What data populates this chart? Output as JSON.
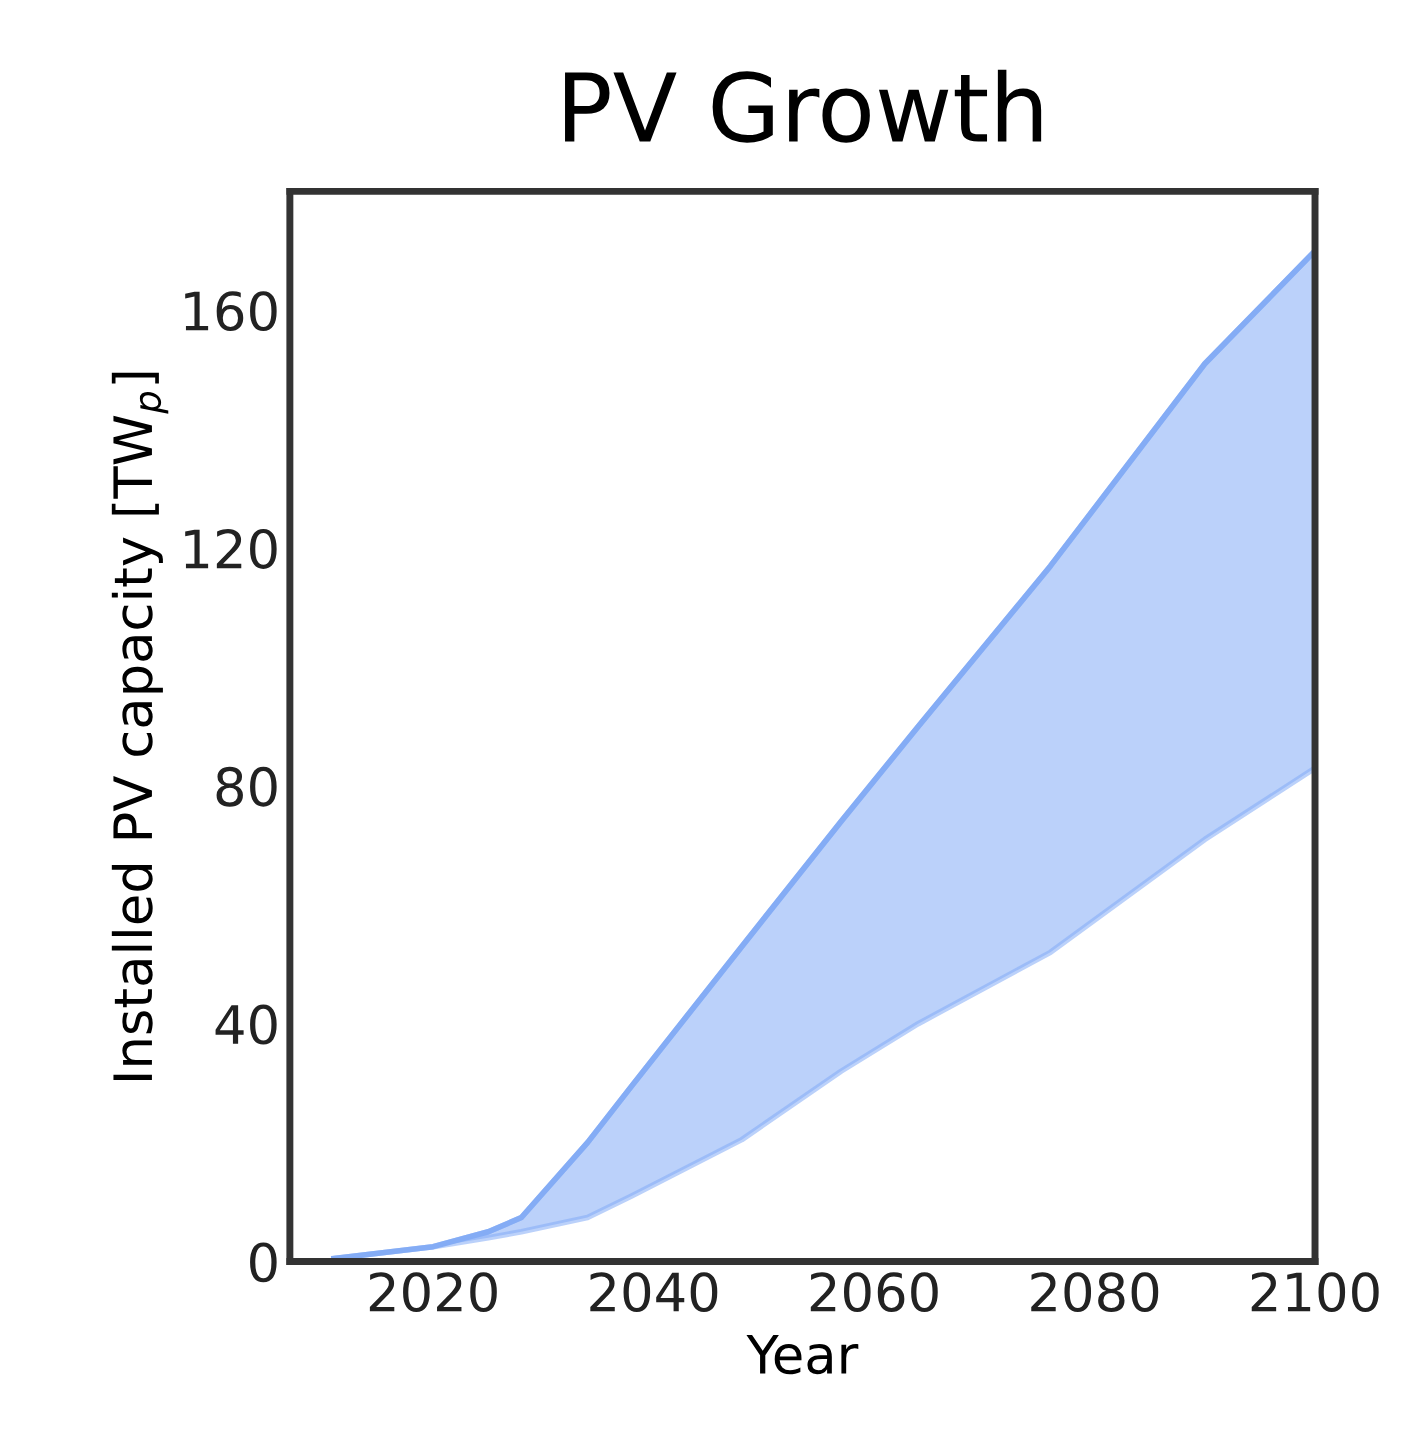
{
  "chart_data": {
    "type": "line",
    "title": "PV Growth",
    "xlabel": "Year",
    "ylabel": "Installed PV capacity [TW$_{p}$]",
    "x": [
      2011,
      2020,
      2025,
      2028,
      2034,
      2038,
      2048,
      2057,
      2064,
      2076,
      2090,
      2100
    ],
    "series": [
      {
        "color": "#84acf5",
        "values": [
          0.5,
          2.5,
          5,
          7.4,
          20,
          29.5,
          53,
          74,
          90,
          117,
          151,
          170
        ],
        "lower": [
          0.5,
          2.5,
          4,
          5,
          7.4,
          11,
          20.5,
          32,
          40,
          52,
          71,
          83
        ],
        "upper": [
          0.5,
          2.5,
          5,
          7.4,
          20,
          29.5,
          53,
          74,
          90,
          117,
          151,
          170
        ]
      }
    ],
    "xlim": [
      2007,
      2100
    ],
    "xticks": [
      2020,
      2040,
      2060,
      2080,
      2100
    ],
    "ylim": [
      0,
      180
    ],
    "yticks": [
      0,
      40,
      80,
      120,
      160
    ],
    "grid": false,
    "legend": false
  }
}
